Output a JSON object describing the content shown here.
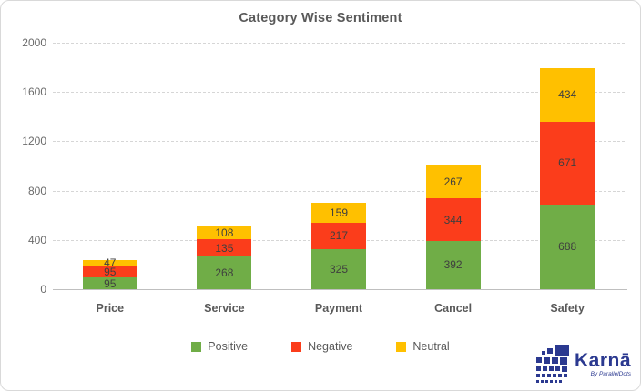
{
  "chart": {
    "title": "Category Wise Sentiment"
  },
  "chart_data": {
    "type": "bar",
    "stacked": true,
    "title": "Category Wise Sentiment",
    "categories": [
      "Price",
      "Service",
      "Payment",
      "Cancel",
      "Safety"
    ],
    "series": [
      {
        "name": "Positive",
        "color": "#70AD47",
        "values": [
          95,
          268,
          325,
          392,
          688
        ]
      },
      {
        "name": "Negative",
        "color": "#FB3D1B",
        "values": [
          95,
          135,
          217,
          344,
          671
        ]
      },
      {
        "name": "Neutral",
        "color": "#FFC000",
        "values": [
          47,
          108,
          159,
          267,
          434
        ]
      }
    ],
    "xlabel": "",
    "ylabel": "",
    "ylim": [
      0,
      2000
    ],
    "yticks": [
      0,
      400,
      800,
      1200,
      1600,
      2000
    ],
    "grid": "horizontal-dashed",
    "legend_position": "bottom",
    "data_labels": true
  },
  "brand": {
    "name": "Karnā",
    "byline": "By ParallelDots",
    "color": "#2B3990"
  }
}
